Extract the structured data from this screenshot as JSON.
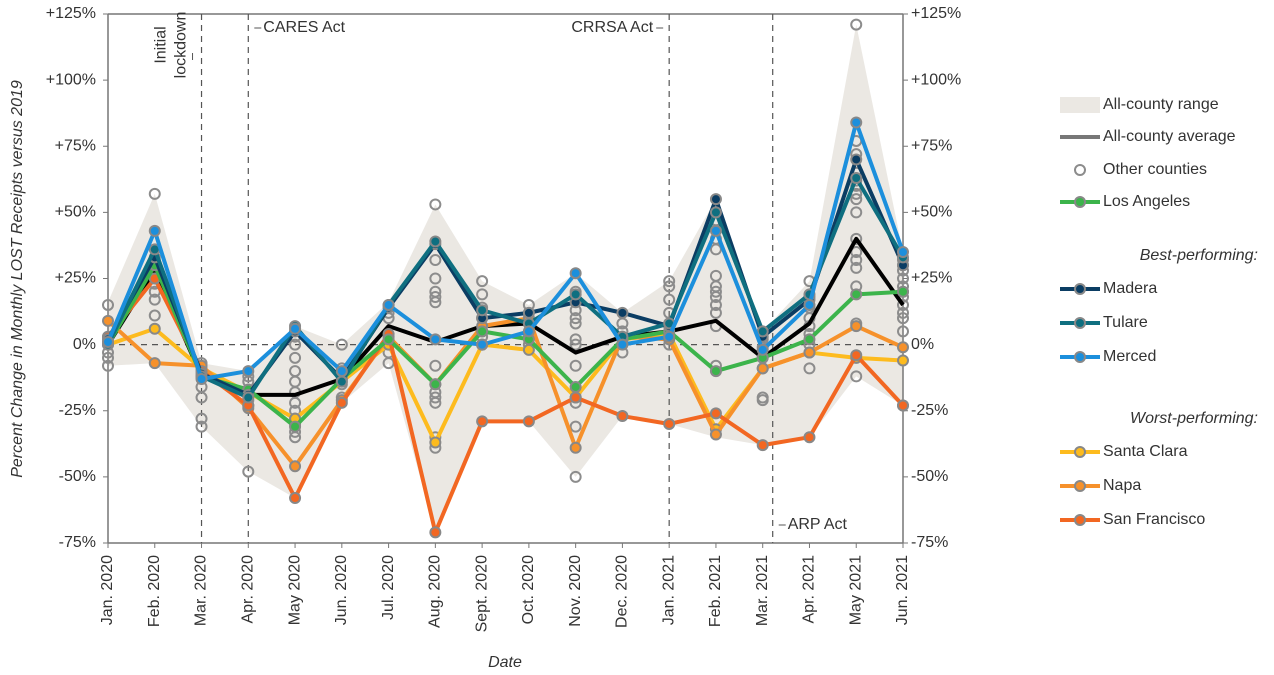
{
  "chart_data": {
    "type": "line",
    "y_label": "Percent Change in Monthly LOST Receipts versus 2019",
    "x_label": "Date",
    "categories": [
      "Jan. 2020",
      "Feb. 2020",
      "Mar. 2020",
      "Apr. 2020",
      "May 2020",
      "Jun. 2020",
      "Jul. 2020",
      "Aug. 2020",
      "Sept. 2020",
      "Oct. 2020",
      "Nov. 2020",
      "Dec. 2020",
      "Jan. 2021",
      "Feb. 2021",
      "Mar. 2021",
      "Apr. 2021",
      "May 2021",
      "Jun. 2021"
    ],
    "ylim": [
      -75,
      125
    ],
    "yticks": [
      {
        "value": -75,
        "label": "-75%"
      },
      {
        "value": -50,
        "label": "-50%"
      },
      {
        "value": -25,
        "label": "-25%"
      },
      {
        "value": 0,
        "label": "0%"
      },
      {
        "value": 25,
        "label": "+25%"
      },
      {
        "value": 50,
        "label": "+50%"
      },
      {
        "value": 75,
        "label": "+75%"
      },
      {
        "value": 100,
        "label": "+100%"
      },
      {
        "value": 125,
        "label": "+125%"
      }
    ],
    "annotations": [
      {
        "lines": [
          "Initial",
          "lockdown"
        ],
        "category": "Mar. 2020"
      },
      {
        "lines": [
          "CARES Act"
        ],
        "category": "Apr. 2020"
      },
      {
        "lines": [
          "CRRSA Act"
        ],
        "category": "Jan. 2021"
      },
      {
        "lines": [
          "ARP Act"
        ],
        "category": "Mar. 2021"
      }
    ],
    "range": {
      "name": "All-county range",
      "color": "#ebe8e3",
      "upper": [
        16,
        57,
        -7,
        -10,
        7,
        0,
        16,
        53,
        24,
        15,
        27,
        12,
        24,
        55,
        5,
        24,
        121,
        35
      ],
      "lower": [
        -8,
        -7,
        -31,
        -48,
        -58,
        -22,
        -7,
        -71,
        -29,
        -29,
        -50,
        -27,
        -30,
        -35,
        -38,
        -35,
        -12,
        -23
      ]
    },
    "average": {
      "name": "All-county average",
      "color": "#000000",
      "values": [
        0,
        28,
        -12,
        -19,
        -19,
        -13,
        7,
        1,
        7,
        8,
        -3,
        3,
        5,
        9,
        -5,
        8,
        40,
        15
      ]
    },
    "other": {
      "name": "Other counties",
      "color": "#8c8c8c",
      "values": [
        [
          15,
          -8,
          -5,
          -3,
          3
        ],
        [
          57,
          11,
          17,
          20,
          23,
          27,
          32
        ],
        [
          -7,
          -20,
          -28,
          -31,
          -16
        ],
        [
          -48,
          -12,
          -14,
          -17,
          -21,
          -23
        ],
        [
          -35,
          -33,
          -30,
          -28,
          -25,
          -22,
          -18,
          -14,
          -10,
          -5,
          0,
          3
        ],
        [
          0,
          -9,
          -15,
          -20
        ],
        [
          -7,
          -3,
          10,
          12
        ],
        [
          53,
          -39,
          -35,
          -22,
          -20,
          -18,
          -8,
          16,
          18,
          20,
          25,
          32
        ],
        [
          24,
          19,
          14,
          10,
          5,
          3,
          0
        ],
        [
          15,
          12,
          8,
          3,
          0
        ],
        [
          -50,
          -31,
          -22,
          -18,
          -8,
          0,
          2,
          8,
          10,
          13,
          20
        ],
        [
          -3,
          2,
          5,
          8
        ],
        [
          24,
          22,
          17,
          12,
          8,
          3,
          0
        ],
        [
          -8,
          7,
          12,
          15,
          18,
          20,
          22,
          26,
          36,
          40,
          47
        ],
        [
          -21,
          -20,
          -4,
          -1,
          2
        ],
        [
          -9,
          24,
          18,
          14,
          10,
          7,
          4,
          0
        ],
        [
          121,
          -12,
          8,
          22,
          29,
          32,
          35,
          40,
          50,
          55,
          57,
          60,
          62,
          65,
          72,
          77
        ],
        [
          5,
          10,
          12,
          15,
          18,
          20,
          22,
          25,
          28,
          30,
          32,
          -23
        ]
      ]
    },
    "series": [
      {
        "name": "Los Angeles",
        "color": "#3cb44b",
        "values": [
          0,
          30,
          -12,
          -17,
          -31,
          -13,
          2,
          -15,
          5,
          2,
          -16,
          2,
          5,
          -10,
          -5,
          2,
          19,
          20
        ]
      }
    ],
    "best_performing": {
      "title": "Best-performing:",
      "series": [
        {
          "name": "Madera",
          "color": "#0b3d63",
          "values": [
            2,
            33,
            -11,
            -19,
            5,
            -13,
            14,
            38,
            10,
            12,
            16,
            12,
            7,
            55,
            3,
            17,
            70,
            30
          ]
        },
        {
          "name": "Tulare",
          "color": "#0f6f80",
          "values": [
            0,
            36,
            -12,
            -20,
            7,
            -14,
            15,
            39,
            13,
            8,
            19,
            3,
            8,
            50,
            5,
            19,
            63,
            33
          ]
        },
        {
          "name": "Merced",
          "color": "#1c8fdc",
          "values": [
            1,
            43,
            -13,
            -10,
            6,
            -10,
            15,
            2,
            0,
            5,
            27,
            0,
            3,
            43,
            -2,
            15,
            84,
            35
          ]
        }
      ]
    },
    "worst_performing": {
      "title": "Worst-performing:",
      "series": [
        {
          "name": "Santa Clara",
          "color": "#fdbb1e",
          "values": [
            0,
            6,
            -9,
            -18,
            -28,
            -14,
            0,
            -37,
            0,
            -2,
            -20,
            2,
            4,
            -32,
            -9,
            -3,
            -5,
            -6
          ]
        },
        {
          "name": "Napa",
          "color": "#f6912b",
          "values": [
            9,
            -7,
            -8,
            -24,
            -46,
            -21,
            3,
            -15,
            7,
            10,
            -39,
            3,
            2,
            -34,
            -9,
            -3,
            7,
            -1
          ]
        },
        {
          "name": "San Francisco",
          "color": "#f26722",
          "values": [
            3,
            25,
            -10,
            -23,
            -58,
            -22,
            4,
            -71,
            -29,
            -29,
            -20,
            -27,
            -30,
            -26,
            -38,
            -35,
            -4,
            -23
          ]
        }
      ]
    }
  }
}
